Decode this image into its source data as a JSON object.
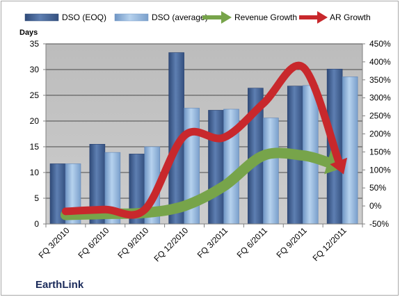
{
  "chart_data": {
    "type": "bar",
    "categories": [
      "FQ 3/2010",
      "FQ 6/2010",
      "FQ 9/2010",
      "FQ 12/2010",
      "FQ 3/2011",
      "FQ 6/2011",
      "FQ 9/2011",
      "FQ 12/2011"
    ],
    "series": [
      {
        "name": "DSO (EOQ)",
        "type": "bar",
        "axis": "left",
        "color": "#4a6a9c",
        "values": [
          11.7,
          15.5,
          13.6,
          33.3,
          22.1,
          26.4,
          26.8,
          30.1
        ]
      },
      {
        "name": "DSO (average)",
        "type": "bar",
        "axis": "left",
        "color": "#8eb4dc",
        "values": [
          11.7,
          13.9,
          15.0,
          22.5,
          22.3,
          20.6,
          26.9,
          28.6
        ]
      },
      {
        "name": "Revenue Growth",
        "type": "line",
        "axis": "right",
        "color": "#77a44a",
        "unit": "%",
        "values": [
          -25,
          -22,
          -19,
          0,
          55,
          140,
          140,
          110
        ]
      },
      {
        "name": "AR Growth",
        "type": "line",
        "axis": "right",
        "color": "#c8282c",
        "unit": "%",
        "values": [
          -15,
          -10,
          -10,
          195,
          190,
          285,
          385,
          95
        ]
      }
    ],
    "ylabel": "Days",
    "ylim": [
      0,
      35
    ],
    "yticks": [
      "0",
      "5",
      "10",
      "15",
      "20",
      "25",
      "30",
      "35"
    ],
    "y2lim": [
      -50,
      450
    ],
    "y2ticks": [
      "-50%",
      "0%",
      "50%",
      "100%",
      "150%",
      "200%",
      "250%",
      "300%",
      "350%",
      "400%",
      "450%"
    ],
    "grid": true,
    "legend": "top",
    "annotation": "EarthLink"
  }
}
